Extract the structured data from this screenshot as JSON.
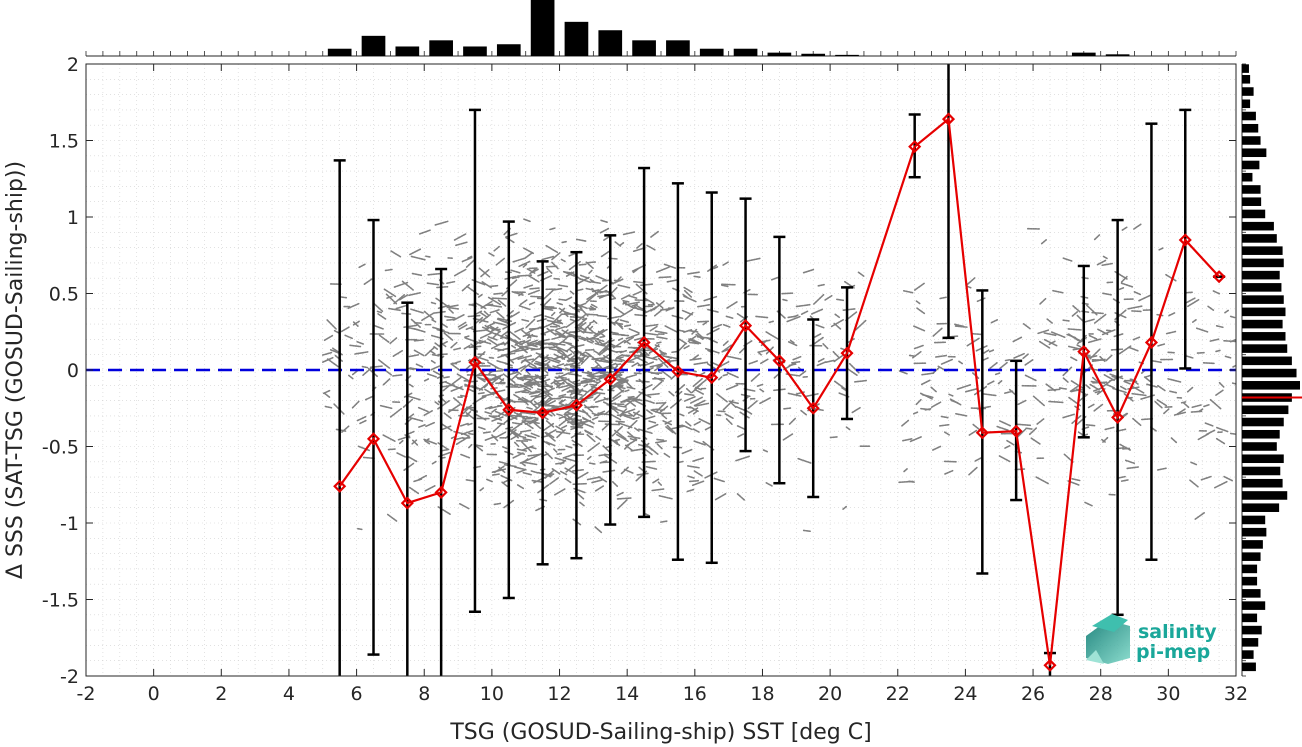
{
  "chart_data": {
    "type": "scatter",
    "xlabel": "TSG (GOSUD-Sailing-ship) SST [deg C]",
    "ylabel": "Δ SSS (SAT-TSG (GOSUD-Sailing-ship))",
    "xlim": [
      -2,
      32
    ],
    "ylim": [
      -2,
      2
    ],
    "xticks": [
      "-2",
      "0",
      "2",
      "4",
      "6",
      "8",
      "10",
      "12",
      "14",
      "16",
      "18",
      "20",
      "22",
      "24",
      "26",
      "28",
      "30",
      "32"
    ],
    "yticks": [
      "-2",
      "-1.5",
      "-1",
      "-0.5",
      "0",
      "0.5",
      "1",
      "1.5",
      "2"
    ],
    "grid": true,
    "reference_line": {
      "y": 0,
      "color": "#0000dd",
      "style": "dashed"
    },
    "mean_series": {
      "color": "#e60000",
      "x": [
        5.5,
        6.5,
        7.5,
        8.5,
        9.5,
        10.5,
        11.5,
        12.5,
        13.5,
        14.5,
        15.5,
        16.5,
        17.5,
        18.5,
        19.5,
        20.5,
        22.5,
        23.5,
        24.5,
        25.5,
        26.5,
        27.5,
        28.5,
        29.5,
        30.5,
        31.5
      ],
      "y": [
        -0.76,
        -0.45,
        -0.87,
        -0.8,
        0.05,
        -0.26,
        -0.28,
        -0.23,
        -0.06,
        0.18,
        -0.01,
        -0.05,
        0.29,
        0.06,
        -0.25,
        0.11,
        1.46,
        1.64,
        -0.41,
        -0.4,
        -1.93,
        0.12,
        -0.31,
        0.18,
        0.85,
        0.61
      ],
      "err_low": [
        -2.0,
        -1.86,
        -2.0,
        -2.0,
        -1.58,
        -1.49,
        -1.27,
        -1.23,
        -1.01,
        -0.96,
        -1.24,
        -1.26,
        -0.53,
        -0.74,
        -0.83,
        -0.32,
        1.26,
        0.21,
        -1.33,
        -0.85,
        -2.0,
        -0.44,
        -1.6,
        -1.24,
        0.01,
        0.61
      ],
      "err_high": [
        1.37,
        0.98,
        0.44,
        0.66,
        1.7,
        0.97,
        0.71,
        0.77,
        0.88,
        1.32,
        1.22,
        1.16,
        1.12,
        0.87,
        0.33,
        0.54,
        1.67,
        2.0,
        0.52,
        0.06,
        -1.85,
        0.68,
        0.98,
        1.61,
        1.7,
        0.61
      ]
    },
    "scatter_color": "#808080",
    "top_histogram": {
      "bin_centers": [
        5.5,
        6.5,
        7.5,
        8.5,
        9.5,
        10.5,
        11.5,
        12.5,
        13.5,
        14.5,
        15.5,
        16.5,
        17.5,
        18.5,
        19.5,
        20.5,
        27.5,
        28.5
      ],
      "counts": [
        0.13,
        0.36,
        0.17,
        0.28,
        0.17,
        0.21,
        1.0,
        0.61,
        0.46,
        0.28,
        0.28,
        0.13,
        0.13,
        0.06,
        0.04,
        0.02,
        0.06,
        0.03
      ]
    },
    "right_histogram": {
      "bin_centers": [
        1.97,
        1.9,
        1.82,
        1.74,
        1.66,
        1.58,
        1.5,
        1.42,
        1.34,
        1.26,
        1.18,
        1.1,
        1.02,
        0.94,
        0.86,
        0.78,
        0.7,
        0.62,
        0.54,
        0.46,
        0.38,
        0.3,
        0.22,
        0.14,
        0.06,
        -0.02,
        -0.1,
        -0.18,
        -0.26,
        -0.34,
        -0.42,
        -0.5,
        -0.58,
        -0.66,
        -0.74,
        -0.82,
        -0.9,
        -0.98,
        -1.06,
        -1.14,
        -1.22,
        -1.3,
        -1.38,
        -1.46,
        -1.54,
        -1.62,
        -1.7,
        -1.78,
        -1.86,
        -1.94
      ],
      "counts": [
        0.12,
        0.14,
        0.2,
        0.14,
        0.24,
        0.28,
        0.32,
        0.42,
        0.3,
        0.18,
        0.32,
        0.33,
        0.4,
        0.55,
        0.6,
        0.7,
        0.72,
        0.65,
        0.68,
        0.72,
        0.75,
        0.7,
        0.75,
        0.78,
        0.86,
        0.94,
        1.0,
        0.86,
        0.8,
        0.72,
        0.65,
        0.6,
        0.72,
        0.66,
        0.7,
        0.78,
        0.64,
        0.4,
        0.42,
        0.36,
        0.32,
        0.26,
        0.26,
        0.32,
        0.4,
        0.26,
        0.34,
        0.28,
        0.2,
        0.24
      ],
      "mean_marker": {
        "y": -0.18,
        "color": "#e60000"
      }
    }
  },
  "logo": {
    "line1": "salinity",
    "line2": "pi-mep",
    "color": "#1aa79a"
  }
}
